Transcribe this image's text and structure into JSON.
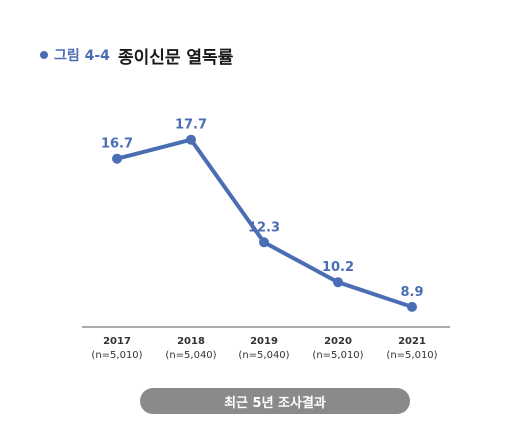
{
  "header": {
    "figure_label": "그림 4-4",
    "title": "종이신문 열독률"
  },
  "caption": "최근 5년 조사결과",
  "colors": {
    "line": "#4a6db3",
    "label": "#4a6db3",
    "axis": "#555555",
    "pill": "#8a8a8a"
  },
  "chart_data": {
    "type": "line",
    "categories": [
      "2017",
      "2018",
      "2019",
      "2020",
      "2021"
    ],
    "sample_sizes": [
      "(n=5,010)",
      "(n=5,040)",
      "(n=5,040)",
      "(n=5,010)",
      "(n=5,010)"
    ],
    "values": [
      16.7,
      17.7,
      12.3,
      10.2,
      8.9
    ],
    "value_labels": [
      "16.7",
      "17.7",
      "12.3",
      "10.2",
      "8.9"
    ],
    "ylim": [
      0,
      20
    ],
    "grid": false,
    "legend": "none"
  }
}
